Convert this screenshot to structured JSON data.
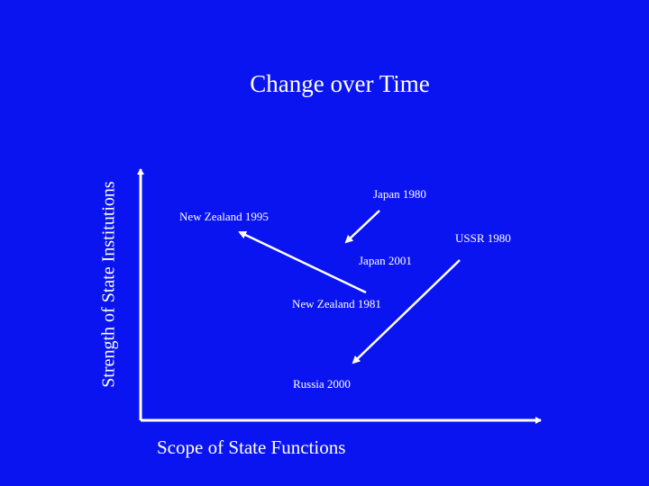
{
  "title": "Change over Time",
  "axes": {
    "y_label": "Strength of State Institutions",
    "x_label": "Scope of State Functions"
  },
  "points": {
    "japan_1980": "Japan 1980",
    "japan_2001": "Japan 2001",
    "nz_1995": "New Zealand 1995",
    "nz_1981": "New Zealand 1981",
    "ussr_1980": "USSR 1980",
    "russia_2000": "Russia 2000"
  },
  "colors": {
    "background": "#0a14f0",
    "foreground": "#ffffff"
  }
}
